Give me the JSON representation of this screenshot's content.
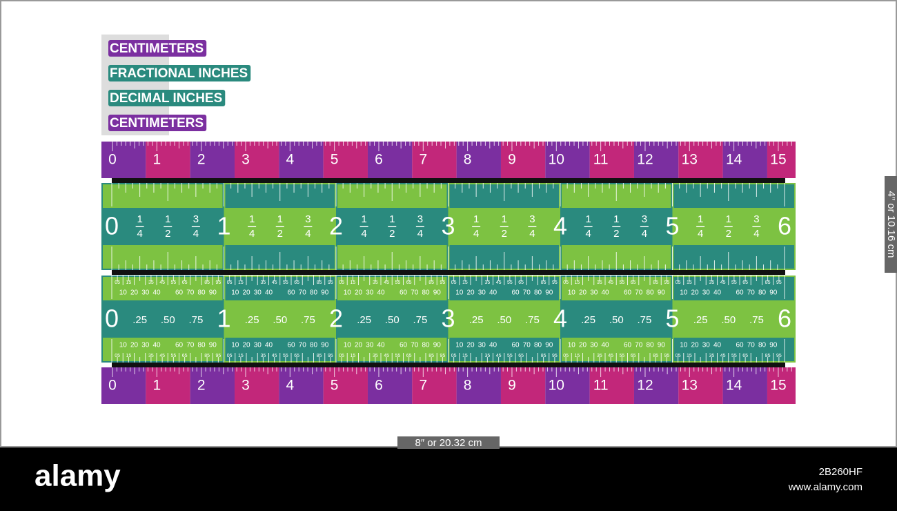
{
  "legend": {
    "items": [
      "CENTIMETERS",
      "FRACTIONAL INCHES",
      "DECIMAL INCHES",
      "CENTIMETERS"
    ]
  },
  "rulers": {
    "centimeters": {
      "labels": [
        "0",
        "1",
        "2",
        "3",
        "4",
        "5",
        "6",
        "7",
        "8",
        "9",
        "10",
        "11",
        "12",
        "13",
        "14",
        "15"
      ]
    },
    "fractional_inches": {
      "labels": [
        "0",
        "1",
        "2",
        "3",
        "4",
        "5",
        "6"
      ],
      "fractions": [
        {
          "numerator": "1",
          "denominator": "4"
        },
        {
          "numerator": "1",
          "denominator": "2"
        },
        {
          "numerator": "3",
          "denominator": "4"
        }
      ]
    },
    "decimal_inches": {
      "labels": [
        "0",
        "1",
        "2",
        "3",
        "4",
        "5",
        "6"
      ],
      "decimals": [
        ".25",
        ".50",
        ".75"
      ],
      "hundredths_row_1": [
        "05",
        "15",
        "35",
        "45",
        "55",
        "65",
        "85",
        "95"
      ],
      "hundredths_row_2": [
        "10",
        "20",
        "30",
        "40",
        "60",
        "70",
        "80",
        "90"
      ]
    }
  },
  "dimensions": {
    "width": "8″ or 20.32 cm",
    "height": "4″ or 10.16 cm"
  },
  "footer": {
    "logo": "alamy",
    "image_id": "2B260HF",
    "url": "www.alamy.com"
  }
}
